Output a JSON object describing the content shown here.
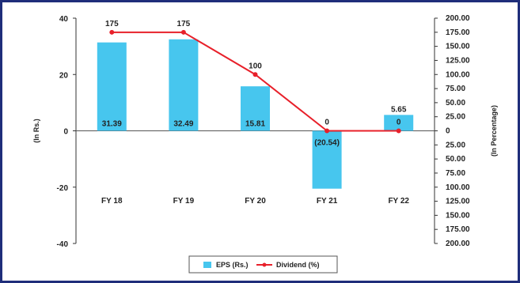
{
  "chart_data": {
    "type": "bar+line",
    "categories": [
      "FY 18",
      "FY 19",
      "FY 20",
      "FY 21",
      "FY 22"
    ],
    "series": [
      {
        "name": "EPS (Rs.)",
        "type": "bar",
        "axis": "left",
        "color": "#47c6ee",
        "values": [
          31.39,
          32.49,
          15.81,
          -20.54,
          5.65
        ],
        "labels": [
          "31.39",
          "32.49",
          "15.81",
          "(20.54)",
          "5.65"
        ]
      },
      {
        "name": "Dividend (%)",
        "type": "line",
        "axis": "right",
        "color": "#e8202a",
        "values": [
          175,
          175,
          100,
          0,
          0
        ],
        "labels": [
          "175",
          "175",
          "100",
          "0",
          "0"
        ]
      }
    ],
    "ylabel": "(In Rs.)",
    "y2label": "(In Percentage)",
    "ylim": [
      -40,
      40
    ],
    "y2lim": [
      -200,
      200
    ],
    "yticks": [
      "40",
      "20",
      "0",
      "-20",
      "-40"
    ],
    "y2ticks": [
      "200.00",
      "175.00",
      "150.00",
      "125.00",
      "100.00",
      "75.00",
      "50.00",
      "25.00",
      "0",
      "25.00",
      "50.00",
      "75.00",
      "100.00",
      "125.00",
      "150.00",
      "175.00",
      "200.00"
    ],
    "legend": {
      "position": "bottom",
      "items": [
        "EPS (Rs.)",
        "Dividend (%)"
      ]
    },
    "colors": {
      "frame": "#1f2e7a",
      "bar": "#47c6ee",
      "line": "#e8202a"
    }
  }
}
